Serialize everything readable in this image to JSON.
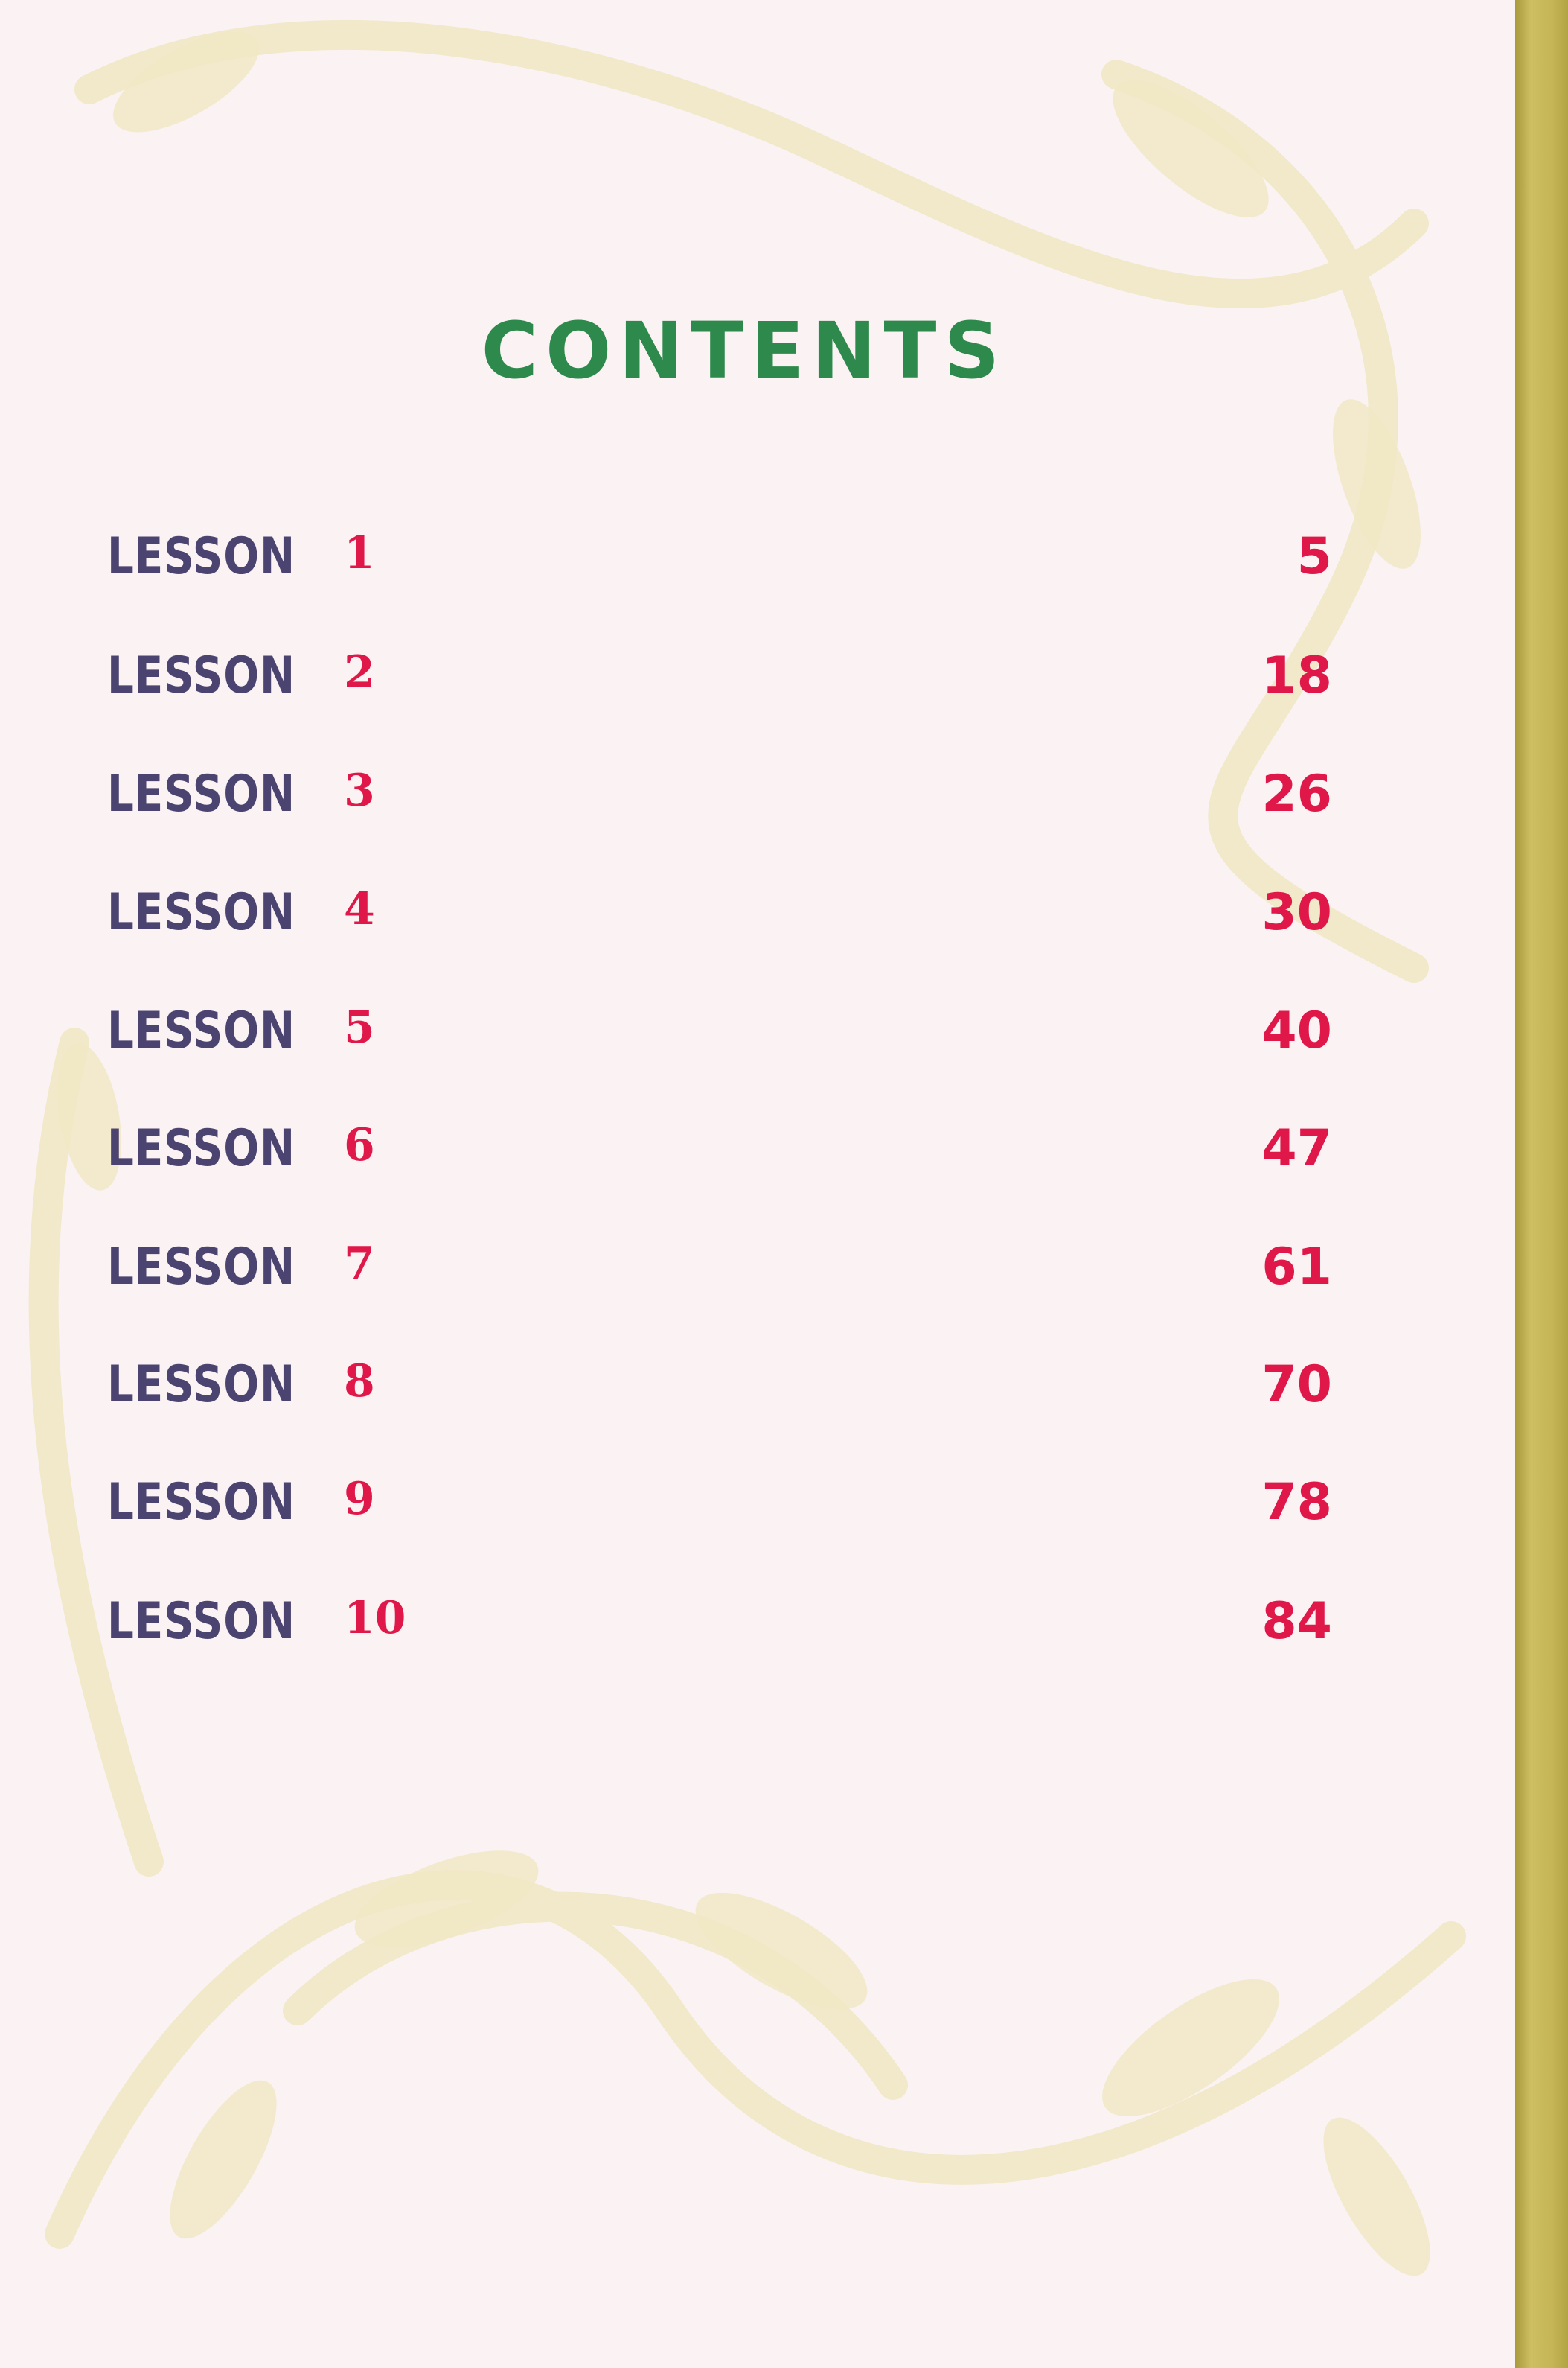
{
  "title": "CONTENTS",
  "entries": [
    {
      "label": "LESSON",
      "number": "1",
      "page": "5"
    },
    {
      "label": "LESSON",
      "number": "2",
      "page": "18"
    },
    {
      "label": "LESSON",
      "number": "3",
      "page": "26"
    },
    {
      "label": "LESSON",
      "number": "4",
      "page": "30"
    },
    {
      "label": "LESSON",
      "number": "5",
      "page": "40"
    },
    {
      "label": "LESSON",
      "number": "6",
      "page": "47"
    },
    {
      "label": "LESSON",
      "number": "7",
      "page": "61"
    },
    {
      "label": "LESSON",
      "number": "8",
      "page": "70"
    },
    {
      "label": "LESSON",
      "number": "9",
      "page": "78"
    },
    {
      "label": "LESSON",
      "number": "10",
      "page": "84"
    }
  ],
  "colors": {
    "title": "#2e8a4c",
    "lesson": "#4b4470",
    "number": "#e0184a",
    "background": "#fbf3f3",
    "ornament": "#f1e8c6",
    "spine": "#c5b556"
  }
}
